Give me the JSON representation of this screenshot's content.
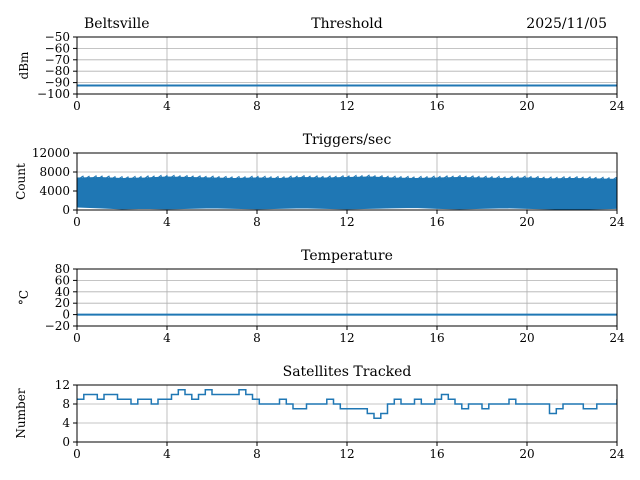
{
  "header": {
    "station": "Beltsville",
    "date": "2025/11/05"
  },
  "colors": {
    "series": "#1f77b4",
    "grid": "#b0b0b0",
    "axes": "#000000"
  },
  "chart_data": [
    {
      "type": "line",
      "title": "Threshold",
      "ylabel": "dBm",
      "xlabel": "",
      "xlim": [
        0,
        24
      ],
      "ylim": [
        -100,
        -50
      ],
      "xticks": [
        "0",
        "4",
        "8",
        "12",
        "16",
        "20",
        "24"
      ],
      "yticks": [
        "−50",
        "−60",
        "−70",
        "−80",
        "−90",
        "−100"
      ],
      "grid": true,
      "series": [
        {
          "x": [
            0,
            24
          ],
          "values": [
            -92.5,
            -92.5
          ]
        }
      ]
    },
    {
      "type": "area",
      "title": "Triggers/sec",
      "ylabel": "Count",
      "xlabel": "",
      "xlim": [
        0,
        24
      ],
      "ylim": [
        0,
        12000
      ],
      "xticks": [
        "0",
        "4",
        "8",
        "12",
        "16",
        "20",
        "24"
      ],
      "yticks": [
        "0",
        "4000",
        "8000",
        "12000"
      ],
      "grid": true,
      "series": [
        {
          "x": [
            0,
            1,
            2,
            3,
            4,
            5,
            6,
            7,
            8,
            9,
            10,
            11,
            12,
            13,
            14,
            15,
            16,
            17,
            18,
            19,
            20,
            21,
            22,
            23,
            24
          ],
          "values": [
            6700,
            6800,
            6600,
            6700,
            6900,
            6800,
            6700,
            6600,
            6700,
            6600,
            6800,
            6700,
            6800,
            6900,
            6700,
            6600,
            6700,
            6800,
            6700,
            6600,
            6700,
            6500,
            6600,
            6500,
            6400
          ],
          "lows": [
            700,
            500,
            300,
            400,
            300,
            400,
            500,
            400,
            300,
            400,
            500,
            400,
            300,
            400,
            500,
            600,
            400,
            300,
            400,
            500,
            400,
            300,
            200,
            300,
            400
          ]
        }
      ]
    },
    {
      "type": "line",
      "title": "Temperature",
      "ylabel": "°C",
      "xlabel": "",
      "xlim": [
        0,
        24
      ],
      "ylim": [
        -20,
        80
      ],
      "xticks": [
        "0",
        "4",
        "8",
        "12",
        "16",
        "20",
        "24"
      ],
      "yticks": [
        "−20",
        "0",
        "20",
        "40",
        "60",
        "80"
      ],
      "grid": true,
      "series": [
        {
          "x": [
            0,
            24
          ],
          "values": [
            0,
            0
          ]
        }
      ]
    },
    {
      "type": "line",
      "title": "Satellites Tracked",
      "ylabel": "Number",
      "xlabel": "",
      "xlim": [
        0,
        24
      ],
      "ylim": [
        0,
        12
      ],
      "xticks": [
        "0",
        "4",
        "8",
        "12",
        "16",
        "20",
        "24"
      ],
      "yticks": [
        "0",
        "4",
        "8",
        "12"
      ],
      "grid": true,
      "series": [
        {
          "x": [
            0,
            0.3,
            0.6,
            0.9,
            1.2,
            1.5,
            1.8,
            2.1,
            2.4,
            2.7,
            3.0,
            3.3,
            3.6,
            3.9,
            4.2,
            4.5,
            4.8,
            5.1,
            5.4,
            5.7,
            6.0,
            6.3,
            6.6,
            6.9,
            7.2,
            7.5,
            7.8,
            8.1,
            8.4,
            8.7,
            9.0,
            9.3,
            9.6,
            9.9,
            10.2,
            10.5,
            10.8,
            11.1,
            11.4,
            11.7,
            12.0,
            12.3,
            12.6,
            12.9,
            13.2,
            13.5,
            13.8,
            14.1,
            14.4,
            14.7,
            15.0,
            15.3,
            15.6,
            15.9,
            16.2,
            16.5,
            16.8,
            17.1,
            17.4,
            17.7,
            18.0,
            18.3,
            18.6,
            18.9,
            19.2,
            19.5,
            19.8,
            20.1,
            20.4,
            20.7,
            21.0,
            21.3,
            21.6,
            21.9,
            22.2,
            22.5,
            22.8,
            23.1,
            23.4,
            23.7,
            24.0
          ],
          "values": [
            9,
            10,
            10,
            9,
            10,
            10,
            9,
            9,
            8,
            9,
            9,
            8,
            9,
            9,
            10,
            11,
            10,
            9,
            10,
            11,
            10,
            10,
            10,
            10,
            11,
            10,
            9,
            8,
            8,
            8,
            9,
            8,
            7,
            7,
            8,
            8,
            8,
            9,
            8,
            7,
            7,
            7,
            7,
            6,
            5,
            6,
            8,
            9,
            8,
            8,
            9,
            8,
            8,
            9,
            10,
            9,
            8,
            7,
            8,
            8,
            7,
            8,
            8,
            8,
            9,
            8,
            8,
            8,
            8,
            8,
            6,
            7,
            8,
            8,
            8,
            7,
            7,
            8,
            8,
            8,
            9
          ]
        }
      ]
    }
  ]
}
